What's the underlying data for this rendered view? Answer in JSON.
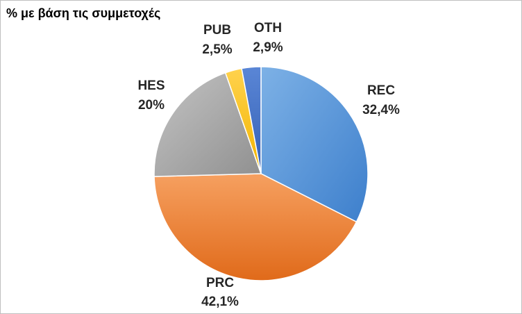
{
  "title": "% με βάση τις συμμετοχές",
  "chart_data": {
    "type": "pie",
    "title": "% με βάση τις συμμετοχές",
    "slices": [
      {
        "name": "REC",
        "value": 32.4,
        "label": "32,4%",
        "color": "#4E8FD6"
      },
      {
        "name": "PRC",
        "value": 42.1,
        "label": "42,1%",
        "color": "#EE7B30"
      },
      {
        "name": "HES",
        "value": 20.0,
        "label": "20%",
        "color": "#A5A5A5"
      },
      {
        "name": "PUB",
        "value": 2.5,
        "label": "2,5%",
        "color": "#FFC000"
      },
      {
        "name": "OTH",
        "value": 2.9,
        "label": "2,9%",
        "color": "#4472C4"
      }
    ],
    "legend": "none"
  }
}
